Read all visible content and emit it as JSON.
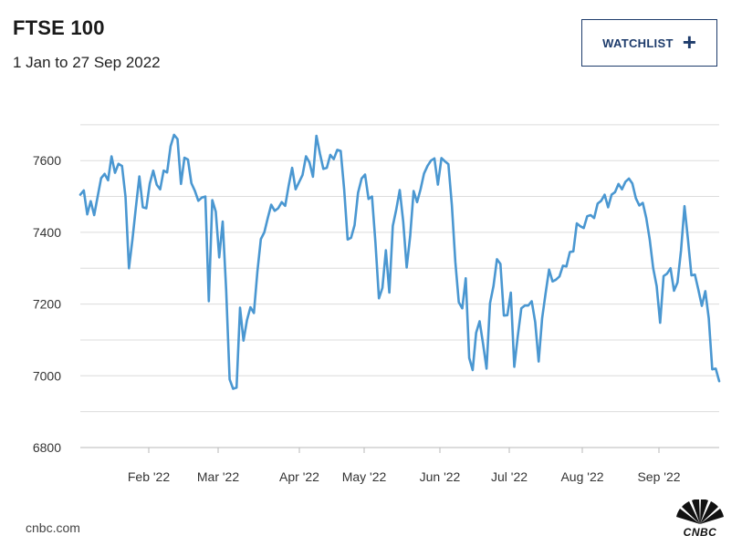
{
  "header": {
    "title": "FTSE 100",
    "subtitle": "1 Jan to 27 Sep 2022",
    "watchlist_label": "WATCHLIST",
    "watchlist_icon": "plus-icon"
  },
  "footer": {
    "source": "cnbc.com",
    "logo_text": "CNBC"
  },
  "colors": {
    "line": "#4a97d1",
    "grid": "#dcdcdc",
    "button_border": "#1d3b6b"
  },
  "chart_data": {
    "type": "line",
    "title": "FTSE 100",
    "xlabel": "",
    "ylabel": "",
    "ylim": [
      6800,
      7700
    ],
    "y_ticks": [
      "6800",
      "7000",
      "7200",
      "7400",
      "7600"
    ],
    "x_ticks": [
      "Feb '22",
      "Mar '22",
      "Apr '22",
      "May '22",
      "Jun '22",
      "Jul '22",
      "Aug '22",
      "Sep '22"
    ],
    "grid": true,
    "series": [
      {
        "values": [
          7505,
          7517,
          7450,
          7487,
          7448,
          7500,
          7551,
          7563,
          7545,
          7612,
          7566,
          7591,
          7585,
          7500,
          7300,
          7380,
          7470,
          7556,
          7470,
          7467,
          7536,
          7572,
          7533,
          7520,
          7572,
          7567,
          7640,
          7672,
          7660,
          7535,
          7608,
          7603,
          7537,
          7516,
          7488,
          7497,
          7500,
          7208,
          7490,
          7458,
          7330,
          7430,
          7240,
          6990,
          6964,
          6967,
          7190,
          7098,
          7155,
          7191,
          7175,
          7290,
          7381,
          7400,
          7440,
          7477,
          7460,
          7467,
          7484,
          7474,
          7530,
          7580,
          7520,
          7540,
          7560,
          7612,
          7595,
          7555,
          7669,
          7620,
          7577,
          7580,
          7616,
          7604,
          7630,
          7627,
          7520,
          7380,
          7385,
          7420,
          7510,
          7550,
          7561,
          7493,
          7500,
          7370,
          7216,
          7245,
          7350,
          7232,
          7418,
          7464,
          7518,
          7430,
          7302,
          7389,
          7515,
          7484,
          7520,
          7564,
          7585,
          7600,
          7606,
          7533,
          7607,
          7598,
          7590,
          7476,
          7318,
          7205,
          7188,
          7272,
          7050,
          7016,
          7120,
          7152,
          7089,
          7020,
          7202,
          7250,
          7325,
          7312,
          7168,
          7169,
          7232,
          7025,
          7110,
          7188,
          7196,
          7196,
          7208,
          7150,
          7040,
          7160,
          7230,
          7296,
          7263,
          7268,
          7277,
          7307,
          7305,
          7345,
          7347,
          7425,
          7417,
          7412,
          7445,
          7448,
          7440,
          7480,
          7488,
          7505,
          7470,
          7505,
          7512,
          7535,
          7520,
          7541,
          7550,
          7536,
          7495,
          7475,
          7482,
          7440,
          7380,
          7300,
          7250,
          7148,
          7278,
          7285,
          7300,
          7237,
          7260,
          7350,
          7473,
          7380,
          7280,
          7282,
          7240,
          7195,
          7236,
          7160,
          7018,
          7020,
          6985
        ]
      }
    ]
  }
}
